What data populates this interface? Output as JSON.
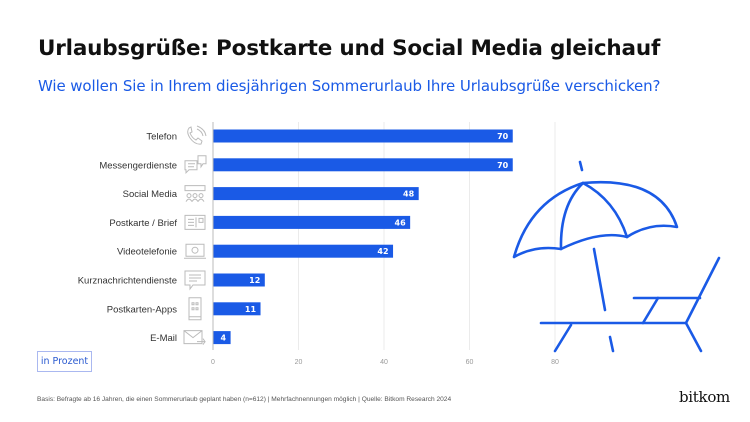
{
  "header": {
    "title": "Urlaubsgrüße: Postkarte und Social Media gleichauf",
    "subtitle": "Wie wollen Sie in Ihrem diesjährigen Sommerurlaub Ihre Urlaubsgrüße verschicken?"
  },
  "unit_label": "in Prozent",
  "footer": "Basis: Befragte ab 16 Jahren, die einen Sommerurlaub geplant haben (n=612) | Mehrfachnennungen möglich | Quelle: Bitkom Research 2024",
  "logo": "bitkom",
  "colors": {
    "bar": "#1a5ae6",
    "accent": "#1a5ae6",
    "grid": "#e6e6e6"
  },
  "chart_data": {
    "type": "bar",
    "orientation": "horizontal",
    "categories": [
      "Telefon",
      "Messengerdienste",
      "Social Media",
      "Postkarte / Brief",
      "Videotelefonie",
      "Kurznachrichtendienste",
      "Postkarten-Apps",
      "E-Mail"
    ],
    "icons": [
      "phone-icon",
      "chat-bubbles-icon",
      "social-media-icon",
      "postcard-icon",
      "video-call-icon",
      "message-icon",
      "smartphone-app-icon",
      "email-icon"
    ],
    "values": [
      70,
      70,
      48,
      46,
      42,
      12,
      11,
      4
    ],
    "xlim": [
      0,
      80
    ],
    "xticks": [
      "0",
      "20",
      "40",
      "60",
      "80"
    ],
    "grid": true,
    "data_labels": true
  }
}
